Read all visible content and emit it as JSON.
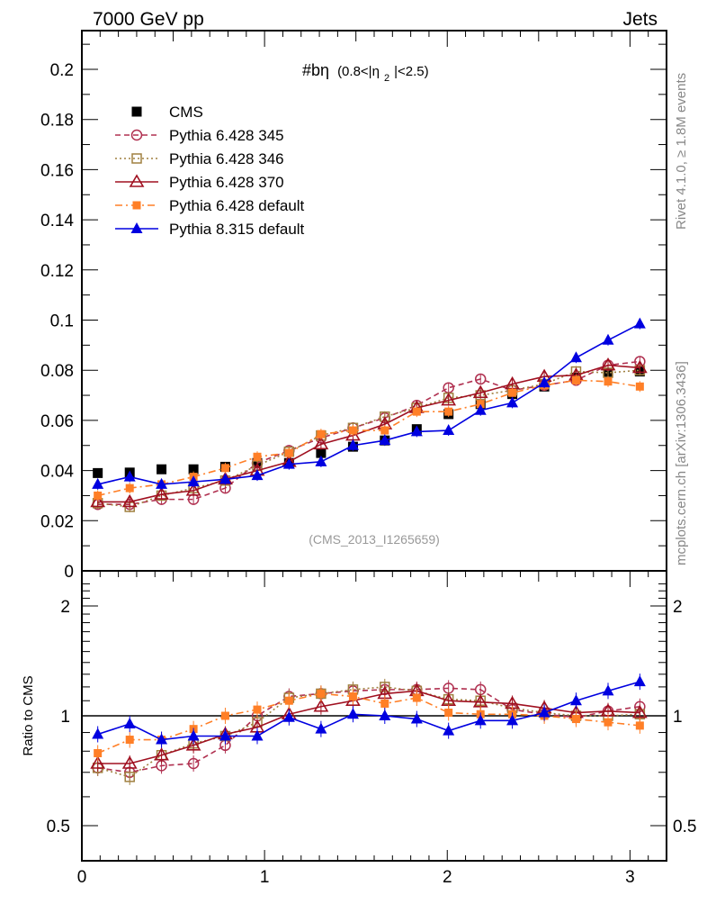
{
  "chart_data": {
    "type": "line",
    "header": {
      "left": "7000 GeV pp",
      "right": "Jets"
    },
    "title": "#bη (0.8<|η₂|<2.5)",
    "title_main": "#bη",
    "title_sub_pre": "(0.8<|η",
    "title_sub_index": "2",
    "title_sub_post": "|<2.5)",
    "analysis_id": "(CMS_2013_I1265659)",
    "side_text_top": "Rivet 4.1.0, ≥ 1.8M events",
    "side_text_bottom": "mcplots.cern.ch [arXiv:1306.3436]",
    "xlabel": "",
    "ylabel": "",
    "ratio_ylabel": "Ratio to CMS",
    "xlim": [
      0,
      3.2
    ],
    "ylim": [
      0,
      0.215
    ],
    "ratio_ylim": [
      0.4,
      2.35
    ],
    "ratio_yscale": "log",
    "x_ticks": [
      "0",
      "1",
      "2",
      "3"
    ],
    "x_tick_values": [
      0,
      1,
      2,
      3
    ],
    "y_ticks": [
      "0",
      "0.02",
      "0.04",
      "0.06",
      "0.08",
      "0.1",
      "0.12",
      "0.14",
      "0.16",
      "0.18",
      "0.2"
    ],
    "y_tick_values": [
      0,
      0.02,
      0.04,
      0.06,
      0.08,
      0.1,
      0.12,
      0.14,
      0.16,
      0.18,
      0.2
    ],
    "ratio_y_ticks": [
      "0.5",
      "1",
      "2"
    ],
    "ratio_y_tick_values": [
      0.5,
      1,
      2
    ],
    "legend_position": "top-left",
    "grid": false,
    "x": [
      0.087,
      0.262,
      0.436,
      0.611,
      0.785,
      0.96,
      1.134,
      1.309,
      1.484,
      1.658,
      1.833,
      2.007,
      2.182,
      2.356,
      2.531,
      2.705,
      2.88,
      3.054
    ],
    "series": [
      {
        "name": "CMS",
        "color": "#000000",
        "marker": "square-filled",
        "line": "none",
        "values": [
          0.039,
          0.0392,
          0.0405,
          0.0405,
          0.0415,
          0.043,
          0.043,
          0.047,
          0.0495,
          0.052,
          0.0565,
          0.0625,
          0.0665,
          0.0705,
          0.0735,
          0.077,
          0.079,
          0.0795
        ],
        "ratio": [
          1,
          1,
          1,
          1,
          1,
          1,
          1,
          1,
          1,
          1,
          1,
          1,
          1,
          1,
          1,
          1,
          1,
          1
        ]
      },
      {
        "name": "Pythia 6.428 345",
        "color": "#b03050",
        "marker": "circle-open",
        "line": "dashed",
        "values": [
          0.0265,
          0.0265,
          0.0285,
          0.0285,
          0.033,
          0.043,
          0.048,
          0.053,
          0.057,
          0.061,
          0.066,
          0.073,
          0.0765,
          0.072,
          0.074,
          0.076,
          0.082,
          0.0835
        ],
        "ratio": [
          0.72,
          0.7,
          0.73,
          0.74,
          0.83,
          1.0,
          1.13,
          1.15,
          1.17,
          1.18,
          1.18,
          1.19,
          1.18,
          1.04,
          1.01,
          0.99,
          1.03,
          1.06
        ]
      },
      {
        "name": "Pythia 6.428 346",
        "color": "#a08040",
        "marker": "square-open",
        "line": "dotted",
        "values": [
          0.027,
          0.0255,
          0.03,
          0.033,
          0.036,
          0.042,
          0.0475,
          0.054,
          0.057,
          0.0615,
          0.065,
          0.069,
          0.07,
          0.072,
          0.0745,
          0.0795,
          0.079,
          0.08
        ],
        "ratio": [
          0.72,
          0.68,
          0.78,
          0.84,
          0.88,
          0.96,
          1.12,
          1.15,
          1.18,
          1.2,
          1.17,
          1.11,
          1.1,
          1.05,
          1.02,
          1.0,
          1.0,
          1.01
        ]
      },
      {
        "name": "Pythia 6.428 370",
        "color": "#a01020",
        "marker": "triangle-open",
        "line": "solid",
        "values": [
          0.0275,
          0.0275,
          0.0305,
          0.032,
          0.0365,
          0.04,
          0.0435,
          0.0505,
          0.054,
          0.0585,
          0.065,
          0.068,
          0.071,
          0.0745,
          0.0775,
          0.078,
          0.082,
          0.081
        ],
        "ratio": [
          0.74,
          0.74,
          0.78,
          0.83,
          0.89,
          0.93,
          1.01,
          1.06,
          1.1,
          1.15,
          1.17,
          1.1,
          1.09,
          1.08,
          1.05,
          1.02,
          1.03,
          1.02
        ]
      },
      {
        "name": "Pythia 6.428 default",
        "color": "#ff7f27",
        "marker": "square-filled-small",
        "line": "dashdot",
        "values": [
          0.03,
          0.033,
          0.0345,
          0.0375,
          0.041,
          0.0455,
          0.047,
          0.0545,
          0.056,
          0.056,
          0.0635,
          0.0635,
          0.0665,
          0.071,
          0.074,
          0.076,
          0.0755,
          0.0735
        ],
        "ratio": [
          0.79,
          0.86,
          0.86,
          0.92,
          1.0,
          1.04,
          1.1,
          1.15,
          1.13,
          1.08,
          1.12,
          1.02,
          1.01,
          1.01,
          1.0,
          0.98,
          0.96,
          0.94
        ]
      },
      {
        "name": "Pythia 8.315 default",
        "color": "#0000e0",
        "marker": "triangle-filled",
        "line": "solid",
        "values": [
          0.0345,
          0.0375,
          0.0345,
          0.0355,
          0.0365,
          0.038,
          0.0425,
          0.0435,
          0.05,
          0.052,
          0.0555,
          0.056,
          0.064,
          0.067,
          0.075,
          0.085,
          0.092,
          0.0985
        ],
        "ratio": [
          0.89,
          0.95,
          0.86,
          0.88,
          0.88,
          0.88,
          0.99,
          0.92,
          1.01,
          1.0,
          0.98,
          0.91,
          0.97,
          0.97,
          1.02,
          1.1,
          1.17,
          1.24
        ]
      }
    ]
  }
}
